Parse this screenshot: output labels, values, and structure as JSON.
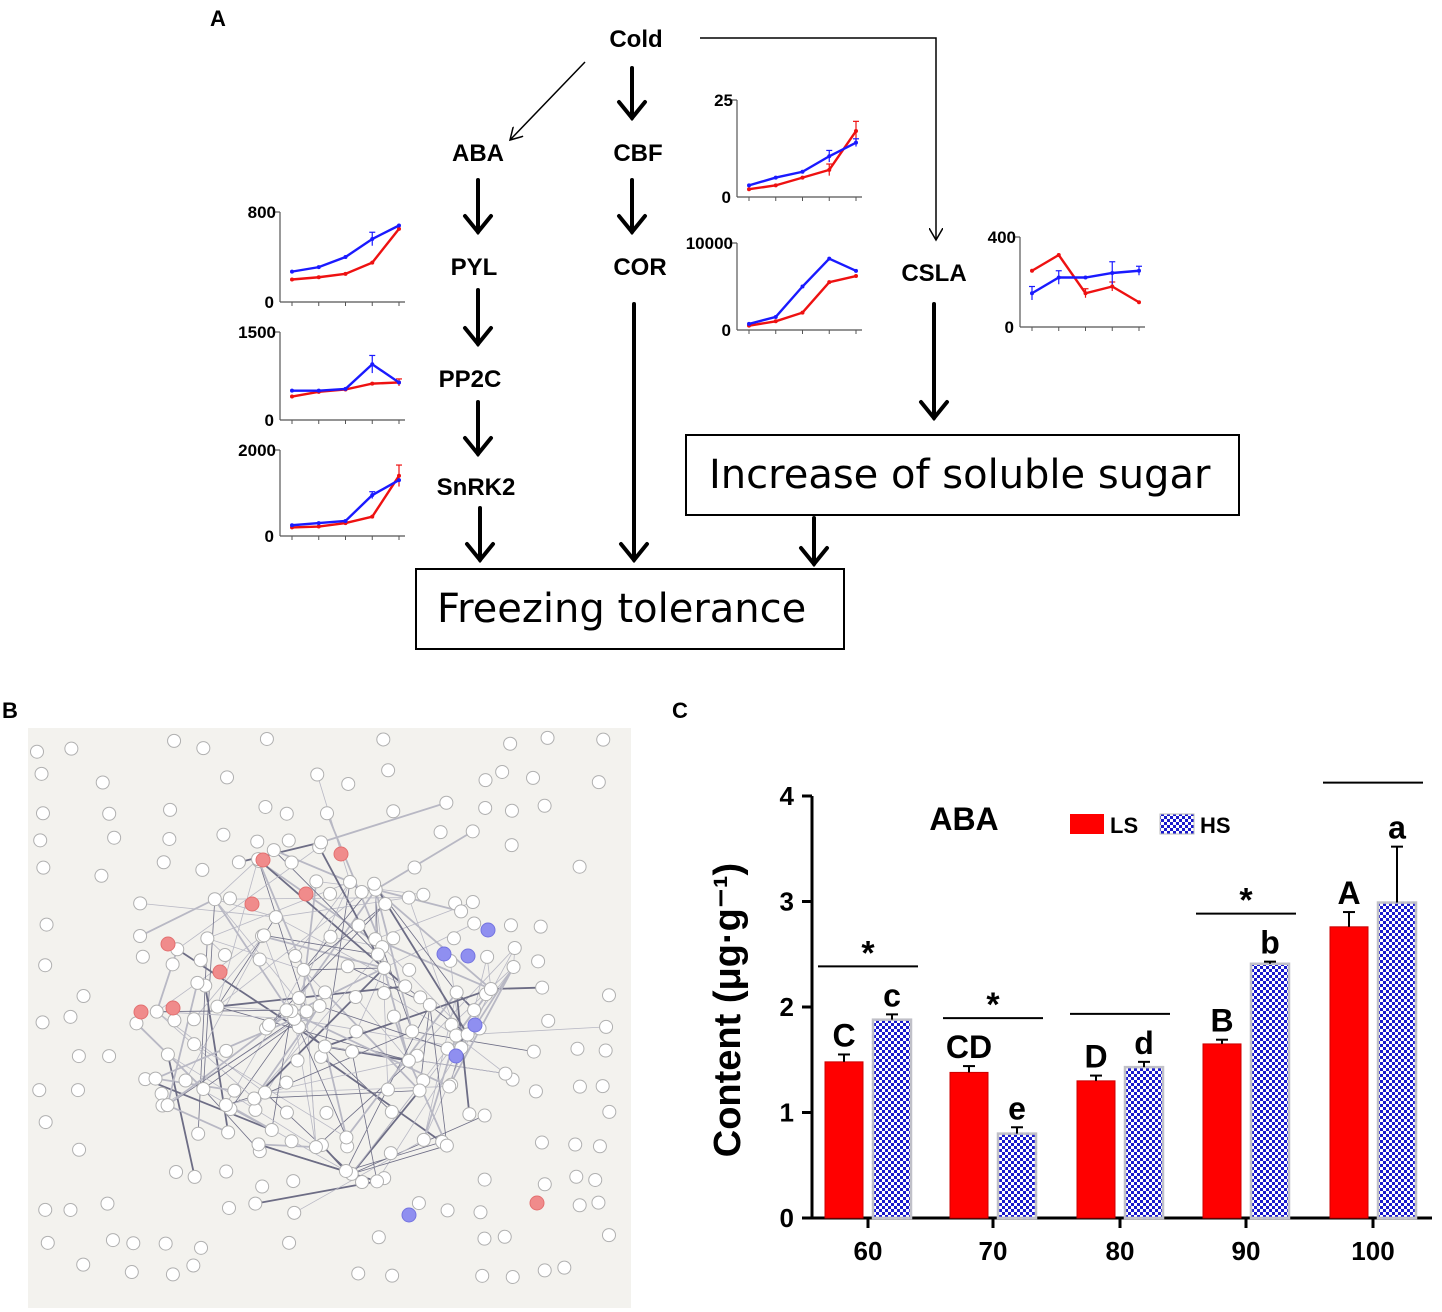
{
  "panels": {
    "a": "A",
    "b": "B",
    "c": "C"
  },
  "pathway": {
    "cold": "Cold",
    "aba": "ABA",
    "pyl": "PYL",
    "pp2c": "PP2C",
    "snrk2": "SnRK2",
    "cbf": "CBF",
    "cor": "COR",
    "csla": "CSLA",
    "sugar_box": "Increase of soluble sugar",
    "freezing_box": "Freezing tolerance"
  },
  "mini_charts": [
    {
      "id": "pyl",
      "ymax_label": "800",
      "ymin_label": "0",
      "ymax": 800,
      "red": [
        200,
        220,
        250,
        350,
        650
      ],
      "blue": [
        270,
        310,
        400,
        560,
        680
      ],
      "blue_err": [
        0,
        0,
        0,
        60,
        0
      ],
      "red_err": [
        0,
        0,
        0,
        0,
        0
      ]
    },
    {
      "id": "pp2c",
      "ymax_label": "1500",
      "ymin_label": "0",
      "ymax": 1500,
      "red": [
        400,
        480,
        520,
        620,
        640
      ],
      "blue": [
        500,
        500,
        530,
        950,
        640
      ],
      "blue_err": [
        0,
        0,
        0,
        150,
        0
      ],
      "red_err": [
        0,
        0,
        0,
        0,
        60
      ]
    },
    {
      "id": "snrk2",
      "ymax_label": "2000",
      "ymin_label": "0",
      "ymax": 2000,
      "red": [
        200,
        220,
        300,
        450,
        1400
      ],
      "blue": [
        250,
        300,
        350,
        950,
        1300
      ],
      "blue_err": [
        0,
        0,
        0,
        80,
        0
      ],
      "red_err": [
        0,
        0,
        0,
        0,
        250
      ]
    },
    {
      "id": "cbf",
      "ymax_label": "25",
      "ymin_label": "0",
      "ymax": 25,
      "red": [
        2,
        3,
        5,
        7,
        17
      ],
      "blue": [
        3,
        5,
        6.5,
        10.5,
        14
      ],
      "blue_err": [
        0,
        0,
        0,
        1.5,
        1
      ],
      "red_err": [
        0,
        0,
        0,
        1.5,
        2.5
      ]
    },
    {
      "id": "cor",
      "ymax_label": "10000",
      "ymin_label": "0",
      "ymax": 10000,
      "red": [
        500,
        1000,
        2000,
        5500,
        6200
      ],
      "blue": [
        700,
        1500,
        5000,
        8200,
        6800
      ],
      "blue_err": [
        0,
        0,
        0,
        0,
        0
      ],
      "red_err": [
        0,
        0,
        0,
        0,
        0
      ]
    },
    {
      "id": "csla",
      "ymax_label": "400",
      "ymin_label": "0",
      "ymax": 400,
      "red": [
        250,
        320,
        150,
        180,
        110
      ],
      "blue": [
        150,
        220,
        220,
        240,
        250
      ],
      "blue_err": [
        30,
        30,
        0,
        50,
        20
      ],
      "red_err": [
        0,
        0,
        20,
        20,
        0
      ]
    }
  ],
  "chart_data": {
    "type": "bar",
    "title": "ABA",
    "ylabel": "Content (μg·g⁻¹)",
    "xlabel": "",
    "ylim": [
      0,
      4
    ],
    "yticks": [
      "0",
      "1",
      "2",
      "3",
      "4"
    ],
    "categories": [
      "60",
      "70",
      "80",
      "90",
      "100"
    ],
    "series": [
      {
        "name": "LS",
        "color": "#ff0000",
        "values": [
          1.48,
          1.38,
          1.3,
          1.65,
          2.76
        ],
        "errors": [
          0.07,
          0.06,
          0.05,
          0.04,
          0.14
        ],
        "letters": [
          "C",
          "CD",
          "D",
          "B",
          "A"
        ]
      },
      {
        "name": "HS",
        "color": "#1a1aff",
        "values": [
          1.88,
          0.8,
          1.43,
          2.41,
          2.99
        ],
        "errors": [
          0.05,
          0.06,
          0.05,
          0.02,
          0.53
        ],
        "letters": [
          "c",
          "e",
          "d",
          "b",
          "a"
        ]
      }
    ],
    "significance": [
      "*",
      "*",
      "",
      "*",
      ""
    ],
    "legend": [
      "LS",
      "HS"
    ]
  }
}
